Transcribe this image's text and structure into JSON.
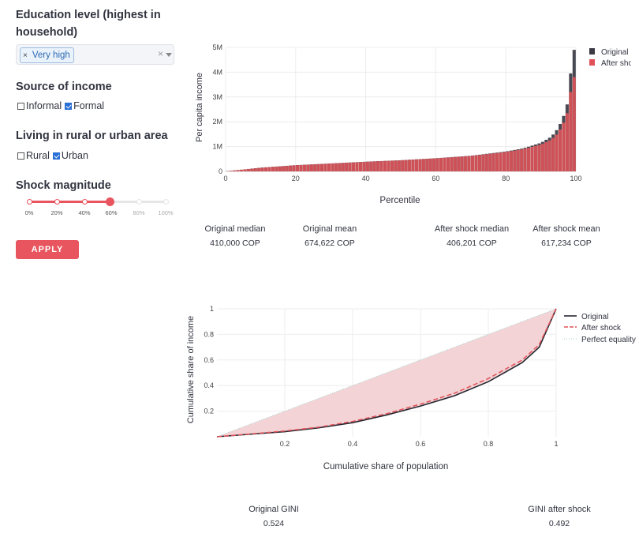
{
  "sidebar": {
    "education": {
      "title_line1": "Education level (highest in",
      "title_line2": "household)",
      "selected_tag": "Very high",
      "tag_remove": "×",
      "clear": "×"
    },
    "income_source": {
      "title": "Source of income",
      "options": [
        {
          "label": "Informal",
          "checked": false
        },
        {
          "label": "Formal",
          "checked": true
        }
      ]
    },
    "area": {
      "title": "Living in rural or urban area",
      "options": [
        {
          "label": "Rural",
          "checked": false
        },
        {
          "label": "Urban",
          "checked": true
        }
      ]
    },
    "shock": {
      "title": "Shock magnitude",
      "value_percent": 60,
      "ticks": [
        "0%",
        "20%",
        "40%",
        "60%",
        "80%",
        "100%"
      ]
    },
    "apply_label": "APPLY"
  },
  "colors": {
    "accent": "#e8555e",
    "original": "#3a3a44",
    "after_shock": "#e05258",
    "equality_fill": "#f3d3d6"
  },
  "stats": {
    "original_median_label": "Original median",
    "original_median_value": "410,000 COP",
    "original_mean_label": "Original mean",
    "original_mean_value": "674,622 COP",
    "after_median_label": "After shock median",
    "after_median_value": "406,201 COP",
    "after_mean_label": "After shock mean",
    "after_mean_value": "617,234 COP"
  },
  "gini": {
    "original_label": "Original GINI",
    "original_value": "0.524",
    "after_label": "GINI after shock",
    "after_value": "0.492"
  },
  "chart_data": [
    {
      "type": "bar",
      "xlabel": "Percentile",
      "ylabel": "Per capita income",
      "xlim": [
        0,
        100
      ],
      "ylim": [
        0,
        5000000
      ],
      "x_ticks": [
        "0",
        "20",
        "40",
        "60",
        "80",
        "100"
      ],
      "y_ticks": [
        "1M",
        "2M",
        "3M",
        "4M",
        "5M"
      ],
      "legend_position": "top-right",
      "percentiles": [
        0,
        10,
        20,
        30,
        40,
        50,
        60,
        70,
        80,
        85,
        90,
        93,
        95,
        97,
        98,
        99
      ],
      "series": [
        {
          "name": "Original",
          "values": [
            0,
            150000,
            250000,
            320000,
            390000,
            450000,
            530000,
            630000,
            800000,
            930000,
            1150000,
            1400000,
            1750000,
            2400000,
            3000000,
            4900000
          ]
        },
        {
          "name": "After shock",
          "values": [
            0,
            145000,
            245000,
            315000,
            385000,
            445000,
            525000,
            620000,
            780000,
            900000,
            1080000,
            1280000,
            1550000,
            2100000,
            2600000,
            3800000
          ]
        }
      ]
    },
    {
      "type": "line",
      "xlabel": "Cumulative share of population",
      "ylabel": "Cumulative share of income",
      "xlim": [
        0,
        1
      ],
      "ylim": [
        0,
        1
      ],
      "x_ticks": [
        "0.2",
        "0.4",
        "0.6",
        "0.8",
        "1"
      ],
      "y_ticks": [
        "0.2",
        "0.4",
        "0.6",
        "0.8",
        "1"
      ],
      "legend_position": "top-right",
      "series": [
        {
          "name": "Original",
          "x": [
            0,
            0.1,
            0.2,
            0.3,
            0.4,
            0.5,
            0.6,
            0.7,
            0.8,
            0.9,
            0.95,
            1
          ],
          "y": [
            0,
            0.02,
            0.04,
            0.07,
            0.11,
            0.17,
            0.24,
            0.32,
            0.43,
            0.58,
            0.7,
            1
          ]
        },
        {
          "name": "After shock",
          "x": [
            0,
            0.1,
            0.2,
            0.3,
            0.4,
            0.5,
            0.6,
            0.7,
            0.8,
            0.9,
            0.95,
            1
          ],
          "y": [
            0,
            0.022,
            0.045,
            0.075,
            0.12,
            0.18,
            0.255,
            0.34,
            0.455,
            0.6,
            0.72,
            1
          ]
        },
        {
          "name": "Perfect equality",
          "x": [
            0,
            1
          ],
          "y": [
            0,
            1
          ]
        }
      ]
    }
  ]
}
